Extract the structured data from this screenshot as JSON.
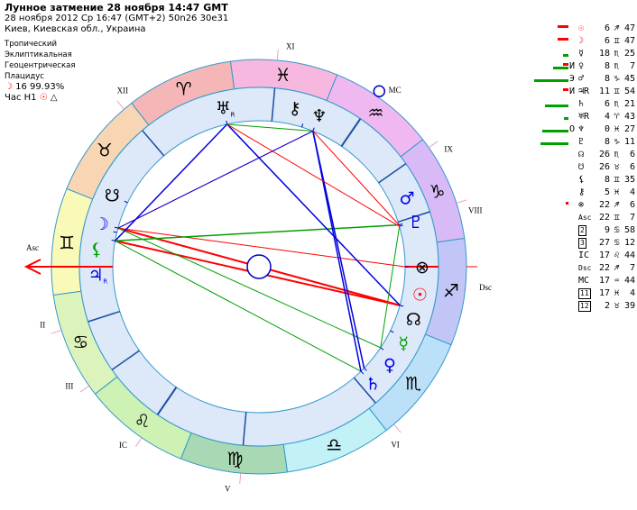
{
  "header": {
    "title": "Лунное затмение 28 ноября 14:47 GMT",
    "line2": "28 ноября 2012  Ср  16:47 (GMT+2) 50n26  30e31",
    "line3": "Киев, Киевская обл., Украина",
    "settings": [
      "Тропический",
      "Эклиптикальная",
      "Геоцентрическая",
      "Плацидус"
    ],
    "moon_phase": "16 99.93%",
    "hour_label": "Час H1",
    "hour_icons": [
      "☉",
      "△"
    ]
  },
  "colors": {
    "red": "#ff0000",
    "green": "#00a000",
    "blue": "#0000e0",
    "ring": "#dde8f8",
    "line": "#3399cc"
  },
  "signs": [
    {
      "name": "aries",
      "glyph": "♈",
      "color": "#f4b6b6"
    },
    {
      "name": "taurus",
      "glyph": "♉",
      "color": "#f8d6b4"
    },
    {
      "name": "gemini",
      "glyph": "♊",
      "color": "#fafab8"
    },
    {
      "name": "cancer",
      "glyph": "♋",
      "color": "#dcf4bc"
    },
    {
      "name": "leo",
      "glyph": "♌",
      "color": "#cef2b4"
    },
    {
      "name": "virgo",
      "glyph": "♍",
      "color": "#a8d8b4"
    },
    {
      "name": "libra",
      "glyph": "♎",
      "color": "#c2f2f6"
    },
    {
      "name": "scorpio",
      "glyph": "♏",
      "color": "#bce0f8"
    },
    {
      "name": "sagittarius",
      "glyph": "♐",
      "color": "#c2c6f6"
    },
    {
      "name": "capricorn",
      "glyph": "♑",
      "color": "#d8baf6"
    },
    {
      "name": "aquarius",
      "glyph": "♒",
      "color": "#f0b8f0"
    },
    {
      "name": "pisces",
      "glyph": "♓",
      "color": "#f6b8de"
    }
  ],
  "houses": [
    {
      "label": "Asc",
      "lon": 82.12
    },
    {
      "label": "II",
      "lon": 99.97
    },
    {
      "label": "III",
      "lon": 117.2
    },
    {
      "label": "IC",
      "lon": 137.73
    },
    {
      "label": "V",
      "lon": 167.07
    },
    {
      "label": "VI",
      "lon": 212.65
    },
    {
      "label": "Dsc",
      "lon": 262.12
    },
    {
      "label": "VIII",
      "lon": 279.97
    },
    {
      "label": "IX",
      "lon": 297.2
    },
    {
      "label": "MC",
      "lon": 317.73
    },
    {
      "label": "XI",
      "lon": 347.07
    },
    {
      "label": "XII",
      "lon": 32.65
    }
  ],
  "planets": [
    {
      "name": "sun",
      "glyph": "☉",
      "lon": 246.78,
      "color": "#ff0000"
    },
    {
      "name": "moon",
      "glyph": "☽",
      "lon": 66.78,
      "color": "#0000e0"
    },
    {
      "name": "mercury",
      "glyph": "☿",
      "lon": 228.42,
      "color": "#00a000"
    },
    {
      "name": "venus",
      "glyph": "♀",
      "lon": 218.12,
      "color": "#0000e0"
    },
    {
      "name": "mars",
      "glyph": "♂",
      "lon": 278.75,
      "color": "#0000e0"
    },
    {
      "name": "jupiter",
      "glyph": "♃",
      "lon": 71.9,
      "color": "#0000e0",
      "retro": "R"
    },
    {
      "name": "saturn",
      "glyph": "♄",
      "lon": 216.35,
      "color": "#0000e0"
    },
    {
      "name": "uranus",
      "glyph": "♅",
      "lon": 4.72,
      "color": "#000000",
      "retro": "R"
    },
    {
      "name": "neptune",
      "glyph": "♆",
      "lon": 330.45,
      "color": "#000000"
    },
    {
      "name": "pluto",
      "glyph": "♇",
      "lon": 278.18,
      "color": "#0000e0"
    },
    {
      "name": "north-node",
      "glyph": "☊",
      "lon": 236.1,
      "color": "#000000"
    },
    {
      "name": "south-node",
      "glyph": "☋",
      "lon": 56.1,
      "color": "#000000"
    },
    {
      "name": "lilith",
      "glyph": "⚸",
      "lon": 68.58,
      "color": "#00a000"
    },
    {
      "name": "chiron",
      "glyph": "⚷",
      "lon": 335.07,
      "color": "#000000"
    },
    {
      "name": "fortune",
      "glyph": "⊗",
      "lon": 262.1,
      "color": "#000000"
    }
  ],
  "aspects": [
    {
      "a": "sun",
      "b": "moon",
      "color": "#ff0000",
      "w": 2
    },
    {
      "a": "sun",
      "b": "jupiter",
      "color": "#ff0000",
      "w": 2
    },
    {
      "a": "moon",
      "b": "fortune",
      "color": "#ff0000",
      "w": 1
    },
    {
      "a": "jupiter",
      "b": "mars",
      "color": "#00a000",
      "w": 1.5
    },
    {
      "a": "moon",
      "b": "mercury",
      "color": "#00a000",
      "w": 1
    },
    {
      "a": "jupiter",
      "b": "saturn",
      "color": "#00a000",
      "w": 1
    },
    {
      "a": "neptune",
      "b": "saturn",
      "color": "#0000e0",
      "w": 1.5
    },
    {
      "a": "neptune",
      "b": "venus",
      "color": "#0000e0",
      "w": 1.5
    },
    {
      "a": "uranus",
      "b": "sun",
      "color": "#0000e0",
      "w": 1.5
    },
    {
      "a": "uranus",
      "b": "jupiter",
      "color": "#0000e0",
      "w": 1.5
    },
    {
      "a": "neptune",
      "b": "mars",
      "color": "#ff0000",
      "w": 1
    },
    {
      "a": "uranus",
      "b": "pluto",
      "color": "#ff0000",
      "w": 1
    },
    {
      "a": "neptune",
      "b": "moon",
      "color": "#ff0000",
      "w": 1
    },
    {
      "a": "neptune",
      "b": "uranus",
      "color": "#00a000",
      "w": 1
    },
    {
      "a": "moon",
      "b": "neptune",
      "color": "#0000e0",
      "w": 1
    },
    {
      "a": "mercury",
      "b": "pluto",
      "color": "#00a000",
      "w": 1
    }
  ],
  "table": [
    {
      "mk": "",
      "g": "☉",
      "d": "6",
      "s": "♐",
      "m": "47",
      "c": "#ff0000",
      "red": 12,
      "green": 0
    },
    {
      "mk": "",
      "g": "☽",
      "d": "6",
      "s": "♊",
      "m": "47",
      "c": "#ff0000",
      "red": 12,
      "green": 0
    },
    {
      "mk": "",
      "g": "☿",
      "d": "18",
      "s": "♏",
      "m": "25",
      "c": "#000",
      "red": 0,
      "green": 6
    },
    {
      "mk": "И",
      "g": "♀",
      "d": "8",
      "s": "♏",
      "m": "7",
      "c": "#000",
      "red": 6,
      "green": 17
    },
    {
      "mk": "Э",
      "g": "♂",
      "d": "8",
      "s": "♑",
      "m": "45",
      "c": "#000",
      "red": 0,
      "green": 38
    },
    {
      "mk": "И",
      "g": "♃R",
      "d": "11",
      "s": "♊",
      "m": "54",
      "c": "#000",
      "red": 6,
      "green": 0
    },
    {
      "mk": "",
      "g": "♄",
      "d": "6",
      "s": "♏",
      "m": "21",
      "c": "#000",
      "red": 0,
      "green": 26
    },
    {
      "mk": "",
      "g": "♅R",
      "d": "4",
      "s": "♈",
      "m": "43",
      "c": "#000",
      "red": 0,
      "green": 5
    },
    {
      "mk": "O",
      "g": "♆",
      "d": "0",
      "s": "♓",
      "m": "27",
      "c": "#000",
      "red": 0,
      "green": 29
    },
    {
      "mk": "",
      "g": "♇",
      "d": "8",
      "s": "♑",
      "m": "11",
      "c": "#000",
      "red": 0,
      "green": 31
    },
    {
      "mk": "",
      "g": "☊",
      "d": "26",
      "s": "♏",
      "m": "6",
      "c": "#000",
      "red": 0,
      "green": 0
    },
    {
      "mk": "",
      "g": "☋",
      "d": "26",
      "s": "♉",
      "m": "6",
      "c": "#000",
      "red": 0,
      "green": 0
    },
    {
      "mk": "",
      "g": "⚸",
      "d": "8",
      "s": "♊",
      "m": "35",
      "c": "#000",
      "red": 0,
      "green": 0
    },
    {
      "mk": "",
      "g": "⚷",
      "d": "5",
      "s": "♓",
      "m": "4",
      "c": "#000",
      "red": 0,
      "green": 0
    },
    {
      "mk": "",
      "g": "⊗",
      "d": "22",
      "s": "♐",
      "m": "6",
      "c": "#000",
      "red": 3,
      "green": 0
    },
    {
      "mk": "",
      "g": "Asc",
      "d": "22",
      "s": "♊",
      "m": "7",
      "c": "#000",
      "red": 0,
      "green": 0
    },
    {
      "mk": "",
      "g": "2",
      "d": "9",
      "s": "♋",
      "m": "58",
      "c": "#000",
      "red": 0,
      "green": 0
    },
    {
      "mk": "",
      "g": "3",
      "d": "27",
      "s": "♋",
      "m": "12",
      "c": "#000",
      "red": 0,
      "green": 0
    },
    {
      "mk": "",
      "g": "IC",
      "d": "17",
      "s": "♌",
      "m": "44",
      "c": "#000",
      "red": 0,
      "green": 0
    },
    {
      "mk": "",
      "g": "Dsc",
      "d": "22",
      "s": "♐",
      "m": "7",
      "c": "#000",
      "red": 0,
      "green": 0
    },
    {
      "mk": "",
      "g": "MC",
      "d": "17",
      "s": "♒",
      "m": "44",
      "c": "#000",
      "red": 0,
      "green": 0
    },
    {
      "mk": "",
      "g": "11",
      "d": "17",
      "s": "♓",
      "m": "4",
      "c": "#000",
      "red": 0,
      "green": 0
    },
    {
      "mk": "",
      "g": "12",
      "d": "2",
      "s": "♉",
      "m": "39",
      "c": "#000",
      "red": 0,
      "green": 0
    }
  ]
}
